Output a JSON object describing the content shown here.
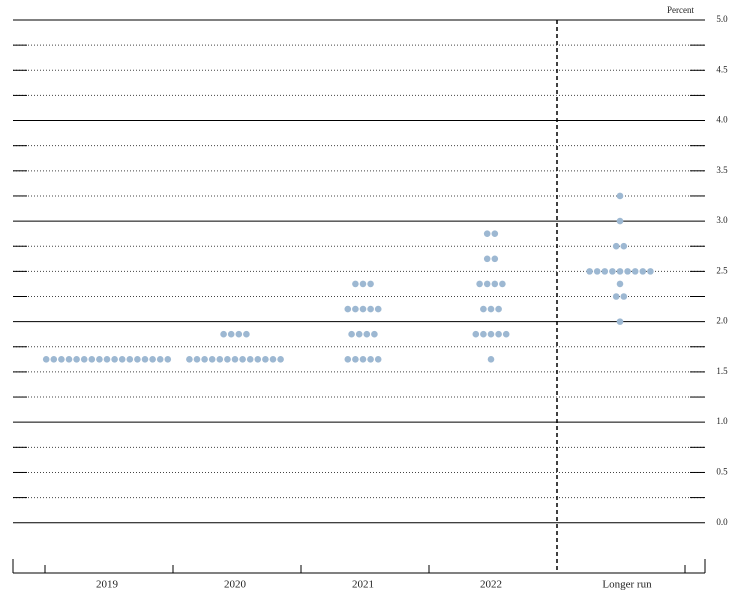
{
  "chart_data": {
    "type": "dot",
    "y_axis_label": "Percent",
    "categories": [
      "2019",
      "2020",
      "2021",
      "2022",
      "Longer run"
    ],
    "series": [
      {
        "color": "#9db8d2",
        "values": [
          [
            1.625,
            1.625,
            1.625,
            1.625,
            1.625,
            1.625,
            1.625,
            1.625,
            1.625,
            1.625,
            1.625,
            1.625,
            1.625,
            1.625,
            1.625,
            1.625,
            1.625
          ],
          [
            1.875,
            1.875,
            1.875,
            1.875,
            1.625,
            1.625,
            1.625,
            1.625,
            1.625,
            1.625,
            1.625,
            1.625,
            1.625,
            1.625,
            1.625,
            1.625,
            1.625
          ],
          [
            2.375,
            2.375,
            2.375,
            2.125,
            2.125,
            2.125,
            2.125,
            2.125,
            1.875,
            1.875,
            1.875,
            1.875,
            1.625,
            1.625,
            1.625,
            1.625,
            1.625
          ],
          [
            2.875,
            2.875,
            2.625,
            2.625,
            2.375,
            2.375,
            2.375,
            2.375,
            2.125,
            2.125,
            2.125,
            1.875,
            1.875,
            1.875,
            1.875,
            1.875,
            1.625
          ],
          [
            3.25,
            3.0,
            2.75,
            2.75,
            2.5,
            2.5,
            2.5,
            2.5,
            2.5,
            2.5,
            2.5,
            2.5,
            2.5,
            2.375,
            2.25,
            2.25,
            2.0
          ]
        ]
      }
    ],
    "ylim": [
      -0.5,
      5.0
    ],
    "yticks": [
      {
        "value": 0,
        "label": "0.0"
      },
      0.5,
      {
        "value": 1,
        "label": "1.0"
      },
      1.5,
      {
        "value": 2,
        "label": "2.0"
      },
      2.5,
      {
        "value": 3,
        "label": "3.0"
      },
      3.5,
      {
        "value": 4,
        "label": "4.0"
      },
      4.5,
      {
        "value": 5,
        "label": "5.0"
      }
    ],
    "yminor": [
      0.25,
      0.75,
      1.25,
      1.75,
      2.25,
      2.75,
      3.25,
      3.75,
      4.25,
      4.75
    ],
    "grid": true
  }
}
